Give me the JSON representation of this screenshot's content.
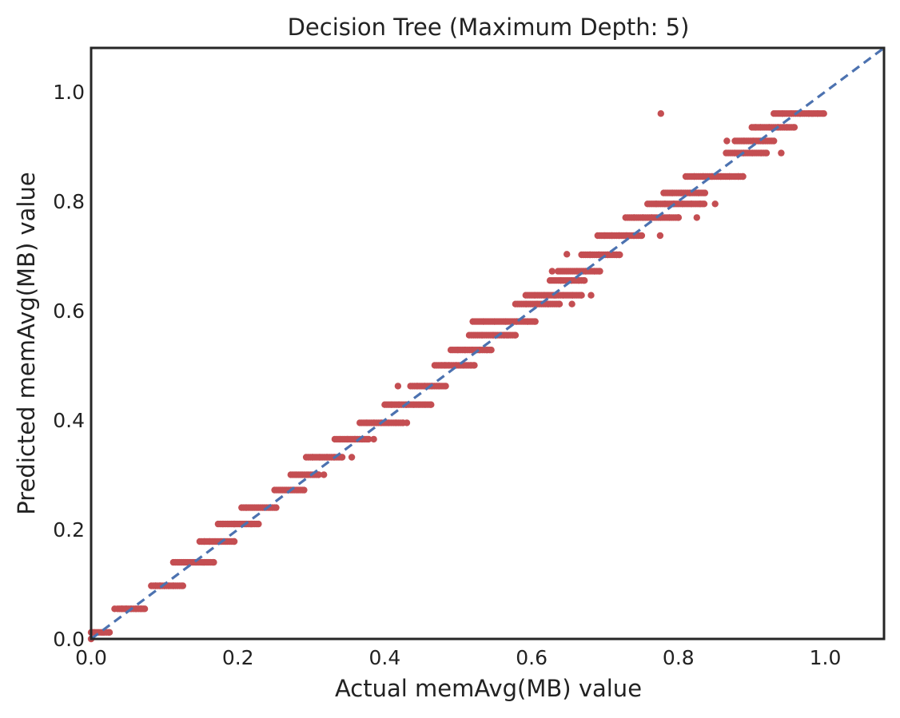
{
  "chart_data": {
    "type": "scatter",
    "title": "Decision Tree (Maximum Depth: 5)",
    "xlabel": "Actual memAvg(MB) value",
    "ylabel": "Predicted memAvg(MB) value",
    "xlim": [
      0.0,
      1.08
    ],
    "ylim": [
      0.0,
      1.08
    ],
    "xticks": [
      "0.0",
      "0.2",
      "0.4",
      "0.6",
      "0.8",
      "1.0"
    ],
    "yticks": [
      "0.0",
      "0.2",
      "0.4",
      "0.6",
      "0.8",
      "1.0"
    ],
    "grid": false,
    "reference_line": {
      "style": "dashed",
      "color": "#4c72b0",
      "from": [
        0,
        0
      ],
      "to": [
        1.08,
        1.08
      ]
    },
    "point_color": "#c44e52",
    "bands": [
      {
        "y": 0.012,
        "x": [
          0.0,
          0.005,
          0.018,
          0.025
        ]
      },
      {
        "y": 0.055,
        "x": [
          0.036,
          0.042,
          0.048,
          0.055,
          0.062,
          0.068,
          0.073
        ]
      },
      {
        "y": 0.097,
        "x": [
          0.082,
          0.088,
          0.094,
          0.1,
          0.106,
          0.112,
          0.123
        ]
      },
      {
        "y": 0.14,
        "x": [
          0.112,
          0.12,
          0.128,
          0.136,
          0.144,
          0.152,
          0.16,
          0.167
        ]
      },
      {
        "y": 0.178,
        "x": [
          0.148,
          0.155,
          0.162,
          0.17,
          0.178,
          0.186,
          0.195
        ]
      },
      {
        "y": 0.21,
        "x": [
          0.173,
          0.18,
          0.188,
          0.196,
          0.204,
          0.212,
          0.22,
          0.228
        ]
      },
      {
        "y": 0.24,
        "x": [
          0.205,
          0.212,
          0.22,
          0.228,
          0.236,
          0.244,
          0.252
        ]
      },
      {
        "y": 0.272,
        "x": [
          0.25,
          0.258,
          0.266,
          0.274,
          0.282,
          0.29
        ]
      },
      {
        "y": 0.3,
        "x": [
          0.272,
          0.28,
          0.288,
          0.296,
          0.304,
          0.31
        ]
      },
      {
        "y": 0.332,
        "x": [
          0.293,
          0.302,
          0.312,
          0.322,
          0.332,
          0.342
        ]
      },
      {
        "y": 0.365,
        "x": [
          0.332,
          0.34,
          0.35,
          0.36,
          0.37,
          0.378
        ]
      },
      {
        "y": 0.395,
        "x": [
          0.366,
          0.376,
          0.386,
          0.396,
          0.406,
          0.416,
          0.425
        ]
      },
      {
        "y": 0.428,
        "x": [
          0.4,
          0.41,
          0.42,
          0.43,
          0.44,
          0.448,
          0.456,
          0.463
        ]
      },
      {
        "y": 0.462,
        "x": [
          0.435,
          0.445,
          0.455,
          0.465,
          0.475,
          0.483
        ]
      },
      {
        "y": 0.5,
        "x": [
          0.468,
          0.478,
          0.488,
          0.498,
          0.508,
          0.518,
          0.522
        ]
      },
      {
        "y": 0.528,
        "x": [
          0.49,
          0.5,
          0.51,
          0.52,
          0.53,
          0.54,
          0.545
        ]
      },
      {
        "y": 0.555,
        "x": [
          0.518,
          0.533,
          0.548,
          0.563,
          0.578
        ]
      },
      {
        "y": 0.58,
        "x": [
          0.52,
          0.535,
          0.55,
          0.565,
          0.58,
          0.595,
          0.605
        ]
      },
      {
        "y": 0.612,
        "x": [
          0.578,
          0.593,
          0.608,
          0.623,
          0.638
        ]
      },
      {
        "y": 0.628,
        "x": [
          0.592,
          0.605,
          0.618,
          0.631,
          0.644,
          0.656,
          0.668
        ]
      },
      {
        "y": 0.655,
        "x": [
          0.625,
          0.64,
          0.655,
          0.665,
          0.672
        ]
      },
      {
        "y": 0.672,
        "x": [
          0.636,
          0.65,
          0.662,
          0.674,
          0.686,
          0.693
        ]
      },
      {
        "y": 0.702,
        "x": [
          0.668,
          0.68,
          0.692,
          0.704,
          0.716,
          0.72
        ]
      },
      {
        "y": 0.737,
        "x": [
          0.69,
          0.7,
          0.71,
          0.72,
          0.73,
          0.74,
          0.75
        ]
      },
      {
        "y": 0.77,
        "x": [
          0.728,
          0.74,
          0.752,
          0.764,
          0.776,
          0.788,
          0.8
        ]
      },
      {
        "y": 0.795,
        "x": [
          0.758,
          0.77,
          0.782,
          0.794,
          0.806,
          0.818,
          0.83,
          0.835
        ]
      },
      {
        "y": 0.815,
        "x": [
          0.78,
          0.792,
          0.804,
          0.816,
          0.828,
          0.836
        ]
      },
      {
        "y": 0.845,
        "x": [
          0.81,
          0.822,
          0.834,
          0.846,
          0.858,
          0.87,
          0.882,
          0.888
        ]
      },
      {
        "y": 0.888,
        "x": [
          0.865,
          0.877,
          0.889,
          0.901,
          0.913,
          0.92
        ]
      },
      {
        "y": 0.91,
        "x": [
          0.877,
          0.89,
          0.903,
          0.916,
          0.93
        ]
      },
      {
        "y": 0.935,
        "x": [
          0.9,
          0.912,
          0.924,
          0.936,
          0.948,
          0.958
        ]
      },
      {
        "y": 0.96,
        "x": [
          0.93,
          0.942,
          0.954,
          0.966,
          0.978,
          0.99,
          0.998
        ]
      }
    ],
    "outliers": [
      {
        "x": 0.0,
        "y": 0.0
      },
      {
        "x": 0.032,
        "y": 0.055
      },
      {
        "x": 0.125,
        "y": 0.097
      },
      {
        "x": 0.195,
        "y": 0.21
      },
      {
        "x": 0.218,
        "y": 0.21
      },
      {
        "x": 0.317,
        "y": 0.3
      },
      {
        "x": 0.355,
        "y": 0.332
      },
      {
        "x": 0.385,
        "y": 0.365
      },
      {
        "x": 0.43,
        "y": 0.395
      },
      {
        "x": 0.418,
        "y": 0.462
      },
      {
        "x": 0.482,
        "y": 0.5
      },
      {
        "x": 0.515,
        "y": 0.555
      },
      {
        "x": 0.628,
        "y": 0.672
      },
      {
        "x": 0.632,
        "y": 0.628
      },
      {
        "x": 0.648,
        "y": 0.703
      },
      {
        "x": 0.655,
        "y": 0.612
      },
      {
        "x": 0.681,
        "y": 0.628
      },
      {
        "x": 0.775,
        "y": 0.737
      },
      {
        "x": 0.776,
        "y": 0.96
      },
      {
        "x": 0.8,
        "y": 0.77
      },
      {
        "x": 0.825,
        "y": 0.77
      },
      {
        "x": 0.85,
        "y": 0.795
      },
      {
        "x": 0.866,
        "y": 0.91
      },
      {
        "x": 0.905,
        "y": 0.935
      },
      {
        "x": 0.94,
        "y": 0.888
      }
    ]
  }
}
